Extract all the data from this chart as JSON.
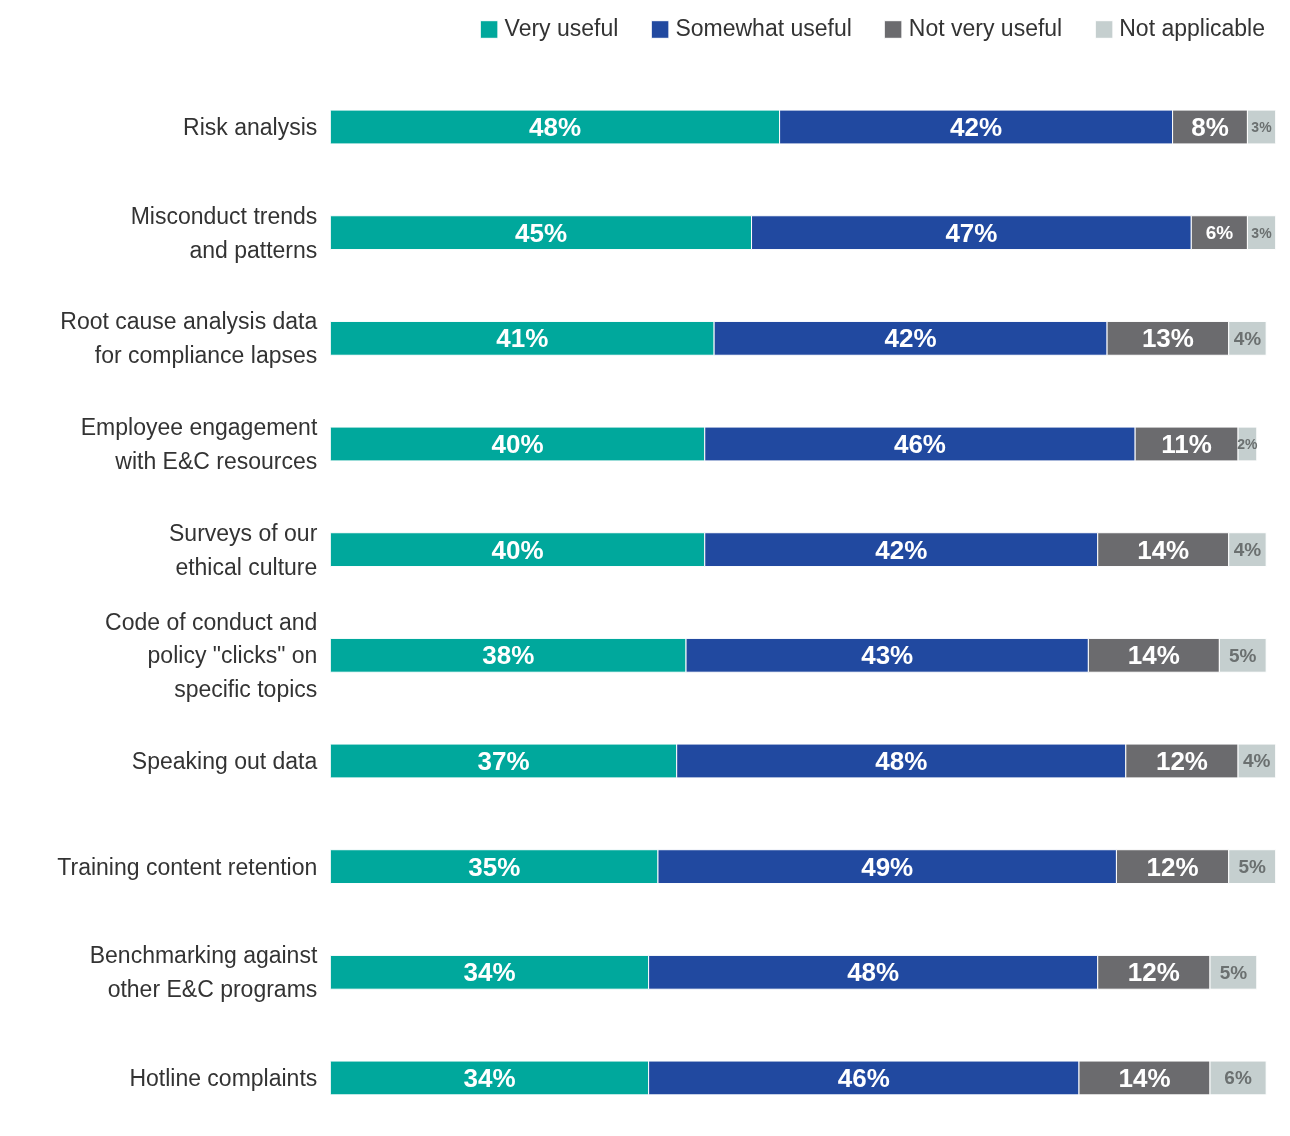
{
  "chart_data": {
    "type": "bar",
    "orientation": "horizontal",
    "stacked": true,
    "categories": [
      "Risk analysis",
      "Misconduct trends\nand patterns",
      "Root cause analysis data\nfor compliance lapses",
      "Employee engagement\nwith E&C resources",
      "Surveys of our\nethical culture",
      "Code of conduct and\npolicy \"clicks\" on\nspecific topics",
      "Speaking out data",
      "Training content retention",
      "Benchmarking against\nother E&C programs",
      "Hotline complaints"
    ],
    "series": [
      {
        "name": "Very useful",
        "color": "#00a89c",
        "values": [
          48,
          45,
          41,
          40,
          40,
          38,
          37,
          35,
          34,
          34
        ],
        "value_labels": [
          "48%",
          "45%",
          "41%",
          "40%",
          "40%",
          "38%",
          "37%",
          "35%",
          "34%",
          "34%"
        ]
      },
      {
        "name": "Somewhat useful",
        "color": "#2149a0",
        "values": [
          42,
          47,
          42,
          46,
          42,
          43,
          48,
          49,
          48,
          46
        ],
        "value_labels": [
          "42%",
          "47%",
          "42%",
          "46%",
          "42%",
          "43%",
          "48%",
          "49%",
          "48%",
          "46%"
        ]
      },
      {
        "name": "Not very useful",
        "color": "#6b6b6e",
        "values": [
          8,
          6,
          13,
          11,
          14,
          14,
          12,
          12,
          12,
          14
        ],
        "value_labels": [
          "8%",
          "6%",
          "13%",
          "11%",
          "14%",
          "14%",
          "12%",
          "12%",
          "12%",
          "14%"
        ]
      },
      {
        "name": "Not applicable",
        "color": "#c5cfcf",
        "values": [
          3,
          3,
          4,
          2,
          4,
          5,
          4,
          5,
          5,
          6
        ],
        "value_labels": [
          "3%",
          "3%",
          "4%",
          "2%",
          "4%",
          "5%",
          "4%",
          "5%",
          "5%",
          "6%"
        ]
      }
    ],
    "xlim": [
      0,
      101
    ],
    "tick_labels": "y",
    "grid": false,
    "legend": "top right"
  }
}
